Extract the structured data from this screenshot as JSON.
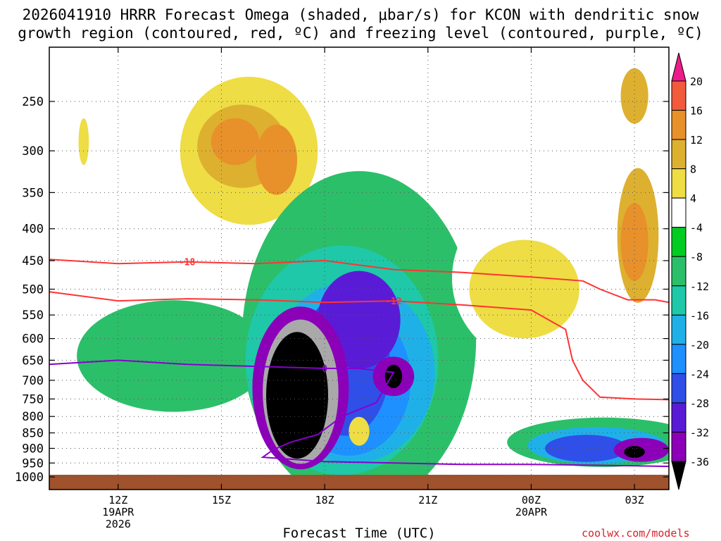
{
  "title": {
    "line1": "2026041910 HRRR Forecast Omega (shaded, μbar/s) for KCON with dendritic snow",
    "line2": "growth region (contoured, red, ºC) and freezing level (contoured, purple, ºC)"
  },
  "footer": {
    "x_axis_title": "Forecast Time (UTC)",
    "credit": "coolwx.com/models"
  },
  "colors": {
    "ground": "#a0522d",
    "omega_bins": [
      "#000000",
      "#a9a9a9",
      "#8b00b8",
      "#5a1bd6",
      "#2f4fe8",
      "#1e90ff",
      "#20b0e8",
      "#1ec8a8",
      "#2cbf6a",
      "#00cc22",
      "#ffffff",
      "#eedd44",
      "#ddb030",
      "#e8902a",
      "#f25a3c",
      "#ee1c8a"
    ],
    "dgz_contour": "#ff3333",
    "freezing_contour": "#8800cc"
  },
  "chart_data": {
    "type": "heatmap",
    "title": "2026041910 HRRR Forecast Omega (shaded, μbar/s) for KCON with dendritic snow growth region (contoured, red, ºC) and freezing level (contoured, purple, ºC)",
    "xlabel": "Forecast Time (UTC)",
    "ylabel": "",
    "x_ticks": [
      {
        "hour": 12,
        "label": "12Z",
        "sub1": "19APR",
        "sub2": "2026"
      },
      {
        "hour": 15,
        "label": "15Z",
        "sub1": "",
        "sub2": ""
      },
      {
        "hour": 18,
        "label": "18Z",
        "sub1": "",
        "sub2": ""
      },
      {
        "hour": 21,
        "label": "21Z",
        "sub1": "",
        "sub2": ""
      },
      {
        "hour": 24,
        "label": "00Z",
        "sub1": "20APR",
        "sub2": ""
      },
      {
        "hour": 27,
        "label": "03Z",
        "sub1": "",
        "sub2": ""
      }
    ],
    "xlim": [
      10,
      28
    ],
    "y_ticks": [
      250,
      300,
      350,
      400,
      450,
      500,
      550,
      600,
      650,
      700,
      750,
      800,
      850,
      900,
      950,
      1000
    ],
    "ylim_hPa": [
      200,
      1000
    ],
    "grid": true,
    "colorbar": {
      "labels": [
        "20",
        "16",
        "12",
        "8",
        "4",
        "-4",
        "-8",
        "-12",
        "-16",
        "-20",
        "-24",
        "-28",
        "-32",
        "-36"
      ],
      "bounds": [
        -36,
        -32,
        -28,
        -24,
        -20,
        -16,
        -12,
        -8,
        -4,
        4,
        8,
        12,
        16,
        20
      ]
    },
    "omega_regions": [
      {
        "value": 6,
        "hour": 11.0,
        "p": 340,
        "rx": 0.6,
        "ry": 110
      },
      {
        "value": 10,
        "hour": 11.0,
        "p": 290,
        "rx": 0.15,
        "ry": 25
      },
      {
        "value": 6,
        "hour": 16.1,
        "p": 320,
        "rx": 2.6,
        "ry": 150
      },
      {
        "value": 10,
        "hour": 15.8,
        "p": 300,
        "rx": 2.0,
        "ry": 80
      },
      {
        "value": 14,
        "hour": 15.6,
        "p": 295,
        "rx": 1.3,
        "ry": 45
      },
      {
        "value": 18,
        "hour": 15.4,
        "p": 290,
        "rx": 0.7,
        "ry": 25
      },
      {
        "value": 18,
        "hour": 16.6,
        "p": 310,
        "rx": 0.6,
        "ry": 40
      },
      {
        "value": -6,
        "hour": 13.6,
        "p": 640,
        "rx": 2.8,
        "ry": 130
      },
      {
        "value": -6,
        "hour": 19.0,
        "p": 600,
        "rx": 3.4,
        "ry": 330
      },
      {
        "value": -10,
        "hour": 18.5,
        "p": 650,
        "rx": 2.8,
        "ry": 260
      },
      {
        "value": -14,
        "hour": 18.8,
        "p": 680,
        "rx": 2.4,
        "ry": 220
      },
      {
        "value": -18,
        "hour": 18.7,
        "p": 700,
        "rx": 1.8,
        "ry": 190
      },
      {
        "value": -22,
        "hour": 18.6,
        "p": 660,
        "rx": 1.3,
        "ry": 170
      },
      {
        "value": -26,
        "hour": 19.0,
        "p": 560,
        "rx": 1.2,
        "ry": 100
      },
      {
        "value": -30,
        "hour": 17.3,
        "p": 720,
        "rx": 1.4,
        "ry": 210
      },
      {
        "value": -34,
        "hour": 17.3,
        "p": 730,
        "rx": 1.1,
        "ry": 190
      },
      {
        "value": -38,
        "hour": 17.2,
        "p": 740,
        "rx": 0.9,
        "ry": 170
      },
      {
        "value": -30,
        "hour": 20.0,
        "p": 690,
        "rx": 0.6,
        "ry": 50
      },
      {
        "value": -38,
        "hour": 20.0,
        "p": 690,
        "rx": 0.25,
        "ry": 30
      },
      {
        "value": 10,
        "hour": 19.0,
        "p": 845,
        "rx": 0.3,
        "ry": 45
      },
      {
        "value": 6,
        "hour": 24.3,
        "p": 480,
        "rx": 2.6,
        "ry": 150
      },
      {
        "value": 10,
        "hour": 23.8,
        "p": 500,
        "rx": 1.6,
        "ry": 90
      },
      {
        "value": 6,
        "hour": 27.2,
        "p": 390,
        "rx": 0.9,
        "ry": 150
      },
      {
        "value": 14,
        "hour": 27.1,
        "p": 410,
        "rx": 0.6,
        "ry": 100
      },
      {
        "value": 18,
        "hour": 27.0,
        "p": 420,
        "rx": 0.4,
        "ry": 60
      },
      {
        "value": 14,
        "hour": 27.0,
        "p": 245,
        "rx": 0.4,
        "ry": 25
      },
      {
        "value": -6,
        "hour": 26.1,
        "p": 880,
        "rx": 2.8,
        "ry": 80
      },
      {
        "value": -14,
        "hour": 25.9,
        "p": 890,
        "rx": 2.0,
        "ry": 60
      },
      {
        "value": -22,
        "hour": 25.6,
        "p": 900,
        "rx": 1.2,
        "ry": 45
      },
      {
        "value": -30,
        "hour": 27.2,
        "p": 905,
        "rx": 0.8,
        "ry": 40
      },
      {
        "value": -38,
        "hour": 27.0,
        "p": 912,
        "rx": 0.3,
        "ry": 20
      }
    ],
    "dgz_contours": [
      {
        "label": "-18",
        "label_hour": 14.0,
        "points": [
          [
            10,
            448
          ],
          [
            12,
            455
          ],
          [
            14,
            452
          ],
          [
            16,
            455
          ],
          [
            18,
            450
          ],
          [
            20,
            465
          ],
          [
            22,
            470
          ],
          [
            24,
            478
          ],
          [
            25.5,
            485
          ],
          [
            26,
            500
          ],
          [
            26.8,
            520
          ],
          [
            27.6,
            520
          ],
          [
            28,
            525
          ]
        ]
      },
      {
        "label": "-12",
        "label_hour": 21.0,
        "points": [
          [
            10,
            505
          ],
          [
            12,
            522
          ],
          [
            14,
            518
          ],
          [
            16,
            520
          ],
          [
            18,
            525
          ],
          [
            20,
            522
          ],
          [
            22,
            530
          ],
          [
            24,
            540
          ],
          [
            25,
            580
          ],
          [
            25.2,
            650
          ],
          [
            25.5,
            700
          ],
          [
            26,
            745
          ],
          [
            27,
            750
          ],
          [
            28,
            752
          ]
        ]
      }
    ],
    "freezing_contour": {
      "label": "0",
      "label_hour": 18.0,
      "points": [
        [
          10,
          660
        ],
        [
          12,
          650
        ],
        [
          14,
          660
        ],
        [
          16,
          665
        ],
        [
          18,
          670
        ],
        [
          19.0,
          670
        ],
        [
          20.0,
          680
        ],
        [
          19.5,
          760
        ],
        [
          18.5,
          800
        ],
        [
          17.8,
          855
        ],
        [
          17.0,
          880
        ],
        [
          16.5,
          905
        ],
        [
          16.2,
          930
        ],
        [
          18,
          945
        ],
        [
          22,
          955
        ],
        [
          24,
          955
        ],
        [
          26,
          958
        ],
        [
          27,
          960
        ],
        [
          28,
          962
        ]
      ]
    },
    "ground_hPa": 1000
  }
}
